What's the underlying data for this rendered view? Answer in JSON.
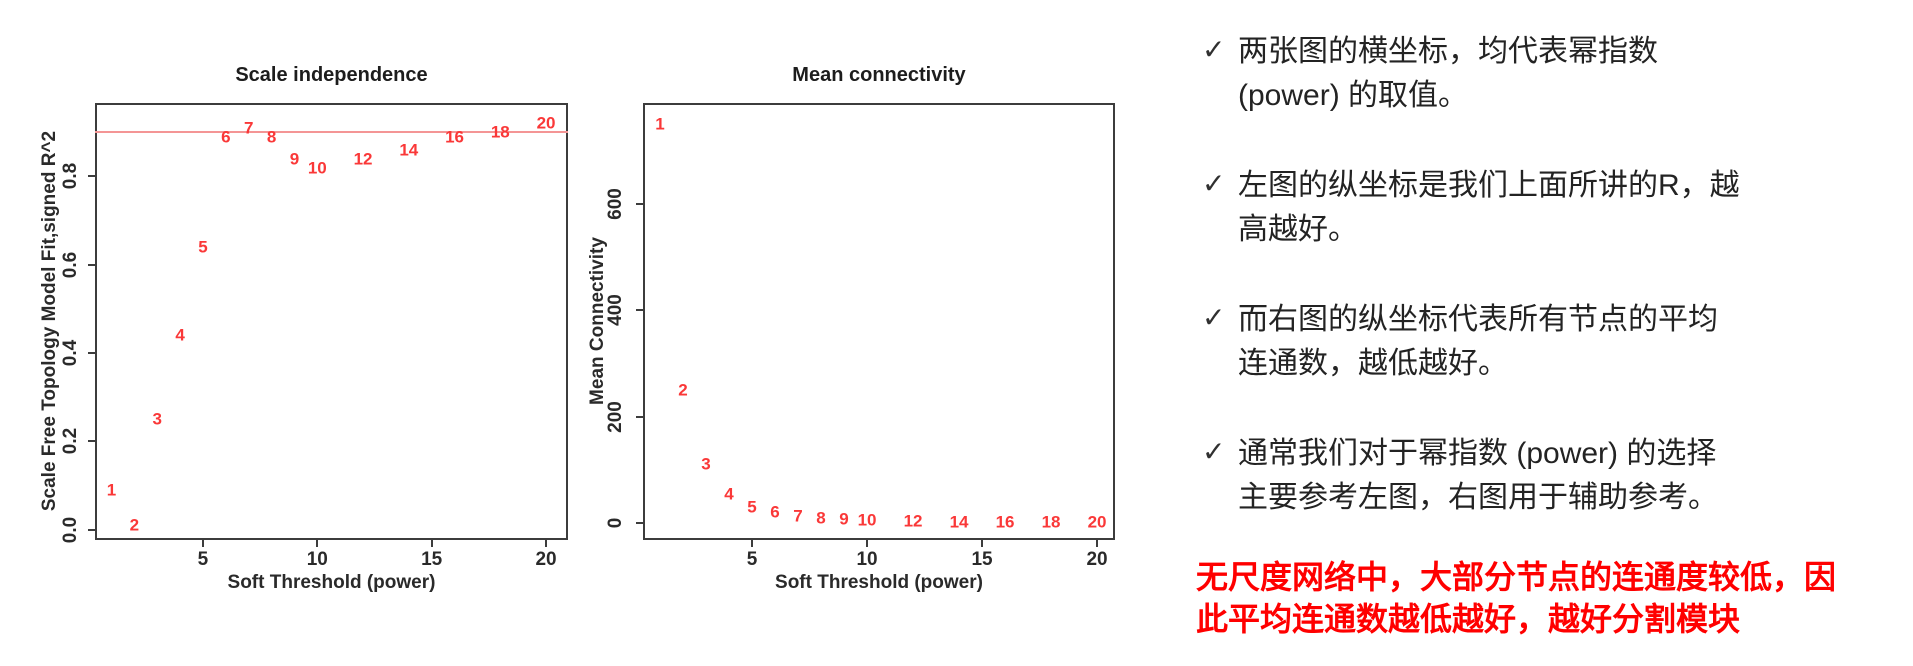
{
  "page": {
    "background": "#ffffff"
  },
  "chart_data": [
    {
      "type": "scatter",
      "title": "Scale independence",
      "xlabel": "Soft Threshold (power)",
      "ylabel": "Scale Free Topology Model Fit,signed R^2",
      "x": [
        1,
        2,
        3,
        4,
        5,
        6,
        7,
        8,
        9,
        10,
        12,
        14,
        16,
        18,
        20
      ],
      "y": [
        0.09,
        0.01,
        0.25,
        0.44,
        0.64,
        0.89,
        0.91,
        0.89,
        0.84,
        0.82,
        0.84,
        0.86,
        0.89,
        0.9,
        0.92
      ],
      "point_labels": [
        "1",
        "2",
        "3",
        "4",
        "5",
        "6",
        "7",
        "8",
        "9",
        "10",
        "12",
        "14",
        "16",
        "18",
        "20"
      ],
      "xticks": [
        5,
        10,
        15,
        20
      ],
      "xtick_labels": [
        "5",
        "10",
        "15",
        "20"
      ],
      "yticks": [
        0,
        0.2,
        0.4,
        0.6,
        0.8
      ],
      "ytick_labels": [
        "0.0",
        "0.2",
        "0.4",
        "0.6",
        "0.8"
      ],
      "xlim": [
        0.28,
        20.96
      ],
      "ylim": [
        -0.023,
        0.966
      ],
      "hline": 0.9,
      "grid": false,
      "legend": false,
      "point_color": "#fa3838",
      "hline_color": "#f49595"
    },
    {
      "type": "scatter",
      "title": "Mean connectivity",
      "xlabel": "Soft Threshold (power)",
      "ylabel": "Mean Connectivity",
      "x": [
        1,
        2,
        3,
        4,
        5,
        6,
        7,
        8,
        9,
        10,
        12,
        14,
        16,
        18,
        20
      ],
      "y": [
        750,
        250,
        110,
        55,
        30,
        20,
        14,
        10,
        7,
        5,
        3,
        2.5,
        2,
        1.5,
        1
      ],
      "point_labels": [
        "1",
        "2",
        "3",
        "4",
        "5",
        "6",
        "7",
        "8",
        "9",
        "10",
        "12",
        "14",
        "16",
        "18",
        "20"
      ],
      "xticks": [
        5,
        10,
        15,
        20
      ],
      "xtick_labels": [
        "5",
        "10",
        "15",
        "20"
      ],
      "yticks": [
        0,
        200,
        400,
        600
      ],
      "ytick_labels": [
        "0",
        "200",
        "400",
        "600"
      ],
      "xlim": [
        0.26,
        20.78
      ],
      "ylim": [
        -32,
        789
      ],
      "hline": null,
      "grid": false,
      "legend": false,
      "point_color": "#fa3838",
      "hline_color": "#f49595"
    }
  ],
  "notes": {
    "check_glyph": "✓",
    "text_color": "#232323",
    "bullets": [
      {
        "lines": [
          "两张图的横坐标，均代表幂指数",
          "(power) 的取值。"
        ]
      },
      {
        "lines": [
          "左图的纵坐标是我们上面所讲的R，越",
          "高越好。"
        ]
      },
      {
        "lines": [
          "而右图的纵坐标代表所有节点的平均",
          "连通数，越低越好。"
        ]
      },
      {
        "lines": [
          "通常我们对于幂指数 (power) 的选择",
          "主要参考左图，右图用于辅助参考。"
        ]
      }
    ],
    "warning": {
      "color": "#ff0000",
      "lines": [
        "无尺度网络中，大部分节点的连通度较低，因",
        "此平均连通数越低越好，越好分割模块"
      ]
    }
  }
}
